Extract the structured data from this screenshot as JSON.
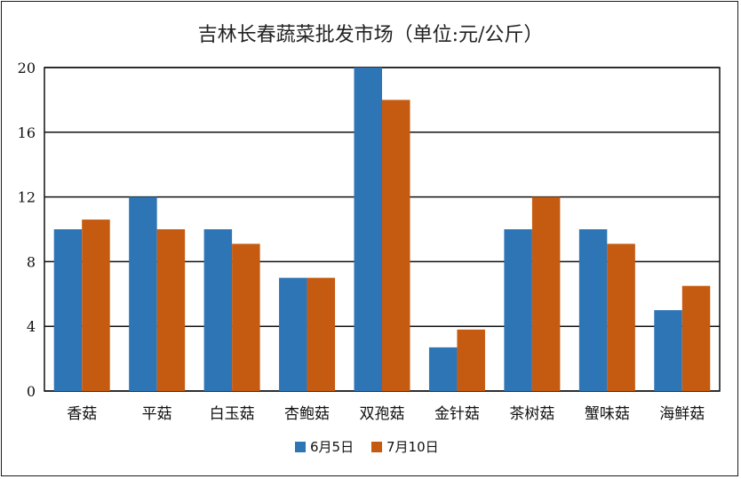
{
  "chart_data": {
    "type": "bar",
    "title": "吉林长春蔬菜批发市场（单位:元/公斤）",
    "categories": [
      "香菇",
      "平菇",
      "白玉菇",
      "杏鲍菇",
      "双孢菇",
      "金针菇",
      "茶树菇",
      "蟹味菇",
      "海鲜菇"
    ],
    "series": [
      {
        "name": "6月5日",
        "color": "#2e75b6",
        "values": [
          10,
          12,
          10,
          7,
          20,
          2.7,
          10,
          10,
          5
        ]
      },
      {
        "name": "7月10日",
        "color": "#c55a11",
        "values": [
          10.6,
          10,
          9.1,
          7,
          18,
          3.8,
          12,
          9.1,
          6.5
        ]
      }
    ],
    "yticks": [
      0,
      4,
      8,
      12,
      16,
      20
    ],
    "ylim": [
      0,
      20
    ],
    "grid": true,
    "legend": "bottom"
  }
}
